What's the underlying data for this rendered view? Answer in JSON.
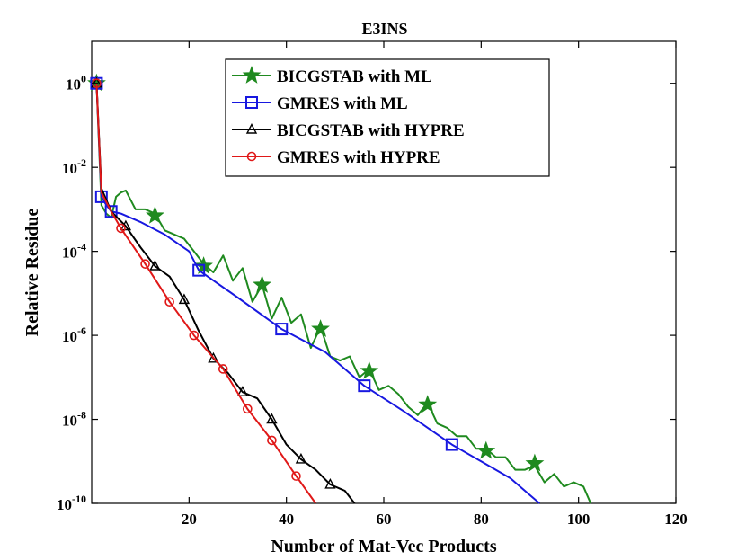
{
  "chart_data": {
    "type": "line",
    "title": "E3INS",
    "xlabel": "Number of Mat-Vec Products",
    "ylabel": "Relative Residue",
    "xlim": [
      0,
      120
    ],
    "ylim_log10": [
      -10,
      1
    ],
    "y_scale": "log",
    "grid": false,
    "legend_position": "top-center",
    "x_ticks": [
      {
        "value": 20,
        "label": "20"
      },
      {
        "value": 40,
        "label": "40"
      },
      {
        "value": 60,
        "label": "60"
      },
      {
        "value": 80,
        "label": "80"
      },
      {
        "value": 100,
        "label": "100"
      },
      {
        "value": 120,
        "label": "120"
      }
    ],
    "y_ticks": [
      {
        "exp": 0,
        "base": "10",
        "sup": "0"
      },
      {
        "exp": -2,
        "base": "10",
        "sup": "-2"
      },
      {
        "exp": -4,
        "base": "10",
        "sup": "-4"
      },
      {
        "exp": -6,
        "base": "10",
        "sup": "-6"
      },
      {
        "exp": -8,
        "base": "10",
        "sup": "-8"
      },
      {
        "exp": -10,
        "base": "10",
        "sup": "-10"
      }
    ],
    "series": [
      {
        "name": "BICGSTAB with ML",
        "color": "#1f8a1f",
        "marker": "star",
        "line_log10": [
          [
            1,
            0
          ],
          [
            2,
            -2.9
          ],
          [
            3,
            -3.1
          ],
          [
            4,
            -3.2
          ],
          [
            5,
            -2.7
          ],
          [
            6,
            -2.6
          ],
          [
            7,
            -2.55
          ],
          [
            9,
            -3.0
          ],
          [
            11,
            -3.0
          ],
          [
            13,
            -3.1
          ],
          [
            15,
            -3.5
          ],
          [
            17,
            -3.6
          ],
          [
            19,
            -3.7
          ],
          [
            21,
            -4.0
          ],
          [
            23,
            -4.3
          ],
          [
            25,
            -4.5
          ],
          [
            27,
            -4.1
          ],
          [
            29,
            -4.7
          ],
          [
            31,
            -4.4
          ],
          [
            33,
            -5.2
          ],
          [
            35,
            -4.8
          ],
          [
            37,
            -5.6
          ],
          [
            39,
            -5.1
          ],
          [
            41,
            -5.7
          ],
          [
            43,
            -5.5
          ],
          [
            45,
            -6.3
          ],
          [
            47,
            -5.8
          ],
          [
            49,
            -6.5
          ],
          [
            51,
            -6.6
          ],
          [
            53,
            -6.5
          ],
          [
            55,
            -7.0
          ],
          [
            57,
            -6.8
          ],
          [
            59,
            -7.3
          ],
          [
            61,
            -7.2
          ],
          [
            63,
            -7.4
          ],
          [
            65,
            -7.7
          ],
          [
            67,
            -7.9
          ],
          [
            69,
            -7.6
          ],
          [
            71,
            -8.1
          ],
          [
            73,
            -8.2
          ],
          [
            75,
            -8.4
          ],
          [
            77,
            -8.4
          ],
          [
            79,
            -8.7
          ],
          [
            81,
            -8.7
          ],
          [
            83,
            -8.9
          ],
          [
            85,
            -8.9
          ],
          [
            87,
            -9.2
          ],
          [
            89,
            -9.2
          ],
          [
            91,
            -9.1
          ],
          [
            93,
            -9.5
          ],
          [
            95,
            -9.3
          ],
          [
            97,
            -9.6
          ],
          [
            99,
            -9.5
          ],
          [
            101,
            -9.6
          ],
          [
            102.5,
            -10.0
          ]
        ],
        "markers_log10": [
          [
            1,
            0
          ],
          [
            13,
            -3.15
          ],
          [
            23,
            -4.35
          ],
          [
            35,
            -4.8
          ],
          [
            47,
            -5.85
          ],
          [
            57,
            -6.85
          ],
          [
            69,
            -7.65
          ],
          [
            81,
            -8.75
          ],
          [
            91,
            -9.05
          ]
        ]
      },
      {
        "name": "GMRES with ML",
        "color": "#1818e0",
        "marker": "square",
        "line_log10": [
          [
            1,
            0
          ],
          [
            2,
            -2.7
          ],
          [
            3,
            -2.9
          ],
          [
            4,
            -3.05
          ],
          [
            6,
            -3.1
          ],
          [
            10,
            -3.3
          ],
          [
            15,
            -3.6
          ],
          [
            20,
            -4.0
          ],
          [
            22,
            -4.45
          ],
          [
            30,
            -5.1
          ],
          [
            39,
            -5.85
          ],
          [
            48,
            -6.4
          ],
          [
            56,
            -7.2
          ],
          [
            64,
            -7.8
          ],
          [
            74,
            -8.6
          ],
          [
            80,
            -9.0
          ],
          [
            86,
            -9.4
          ],
          [
            90,
            -9.8
          ],
          [
            92,
            -10.0
          ]
        ],
        "markers_log10": [
          [
            1,
            0
          ],
          [
            2,
            -2.7
          ],
          [
            4,
            -3.05
          ],
          [
            22,
            -4.45
          ],
          [
            39,
            -5.85
          ],
          [
            56,
            -7.2
          ],
          [
            74,
            -8.6
          ]
        ]
      },
      {
        "name": "BICGSTAB with HYPRE",
        "color": "#000000",
        "marker": "triangle",
        "line_log10": [
          [
            1,
            0
          ],
          [
            2,
            -2.5
          ],
          [
            4,
            -3.05
          ],
          [
            7,
            -3.4
          ],
          [
            10,
            -3.9
          ],
          [
            13,
            -4.35
          ],
          [
            16,
            -4.6
          ],
          [
            19,
            -5.15
          ],
          [
            22,
            -5.9
          ],
          [
            25,
            -6.55
          ],
          [
            28,
            -6.9
          ],
          [
            31,
            -7.35
          ],
          [
            34,
            -7.5
          ],
          [
            37,
            -8.0
          ],
          [
            40,
            -8.6
          ],
          [
            43,
            -8.95
          ],
          [
            46,
            -9.2
          ],
          [
            49,
            -9.55
          ],
          [
            52,
            -9.7
          ],
          [
            54,
            -10.0
          ]
        ],
        "markers_log10": [
          [
            1,
            0
          ],
          [
            7,
            -3.4
          ],
          [
            13,
            -4.35
          ],
          [
            19,
            -5.15
          ],
          [
            25,
            -6.55
          ],
          [
            31,
            -7.35
          ],
          [
            37,
            -8.0
          ],
          [
            43,
            -8.95
          ],
          [
            49,
            -9.55
          ]
        ]
      },
      {
        "name": "GMRES with HYPRE",
        "color": "#e01818",
        "marker": "circle",
        "line_log10": [
          [
            1,
            0
          ],
          [
            2,
            -2.6
          ],
          [
            4,
            -3.05
          ],
          [
            6,
            -3.45
          ],
          [
            11,
            -4.3
          ],
          [
            16,
            -5.2
          ],
          [
            21,
            -6.0
          ],
          [
            27,
            -6.8
          ],
          [
            32,
            -7.75
          ],
          [
            37,
            -8.5
          ],
          [
            42,
            -9.35
          ],
          [
            46,
            -10.0
          ]
        ],
        "markers_log10": [
          [
            1,
            0
          ],
          [
            6,
            -3.45
          ],
          [
            11,
            -4.3
          ],
          [
            16,
            -5.2
          ],
          [
            21,
            -6.0
          ],
          [
            27,
            -6.8
          ],
          [
            32,
            -7.75
          ],
          [
            37,
            -8.5
          ],
          [
            42,
            -9.35
          ]
        ]
      }
    ]
  }
}
